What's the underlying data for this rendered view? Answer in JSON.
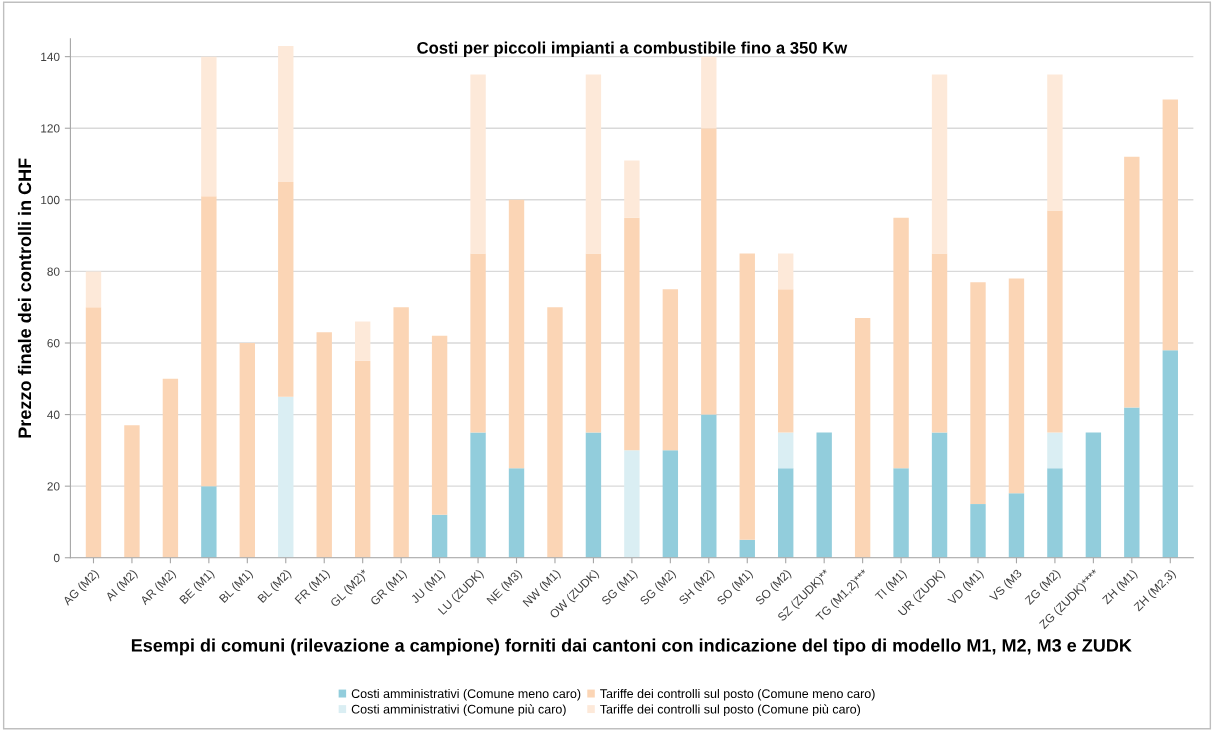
{
  "chart_data": {
    "type": "bar",
    "stacked": true,
    "title": "Costi per piccoli impianti a combustibile fino a 350 Kw",
    "xlabel": "Esempi di comuni (rilevazione a campione) forniti dai cantoni con indicazione del tipo di modello M1, M2, M3 e ZUDK",
    "ylabel": "Prezzo finale dei controlli in CHF",
    "categories": [
      "AG (M2)",
      "AI (M2)",
      "AR (M2)",
      "BE (M1)",
      "BL (M1)",
      "BL (M2)",
      "FR (M1)",
      "GL (M2)*",
      "GR (M1)",
      "JU (M1)",
      "LU (ZUDK)",
      "NE (M3)",
      "NW (M1)",
      "OW (ZUDK)",
      "SG (M1)",
      "SG (M2)",
      "SH (M2)",
      "SO (M1)",
      "SO (M2)",
      "SZ (ZUDK)**",
      "TG (M1,2)***",
      "TI (M1)",
      "UR (ZUDK)",
      "VD (M1)",
      "VS (M3",
      "ZG (M2)",
      "ZG (ZUDK)****",
      "ZH (M1)",
      "ZH (M2,3)"
    ],
    "series": [
      {
        "name": "Costi amministrativi (Comune meno caro)",
        "color": "#92cddc",
        "values": [
          0,
          0,
          0,
          20,
          0,
          0,
          0,
          0,
          0,
          12,
          35,
          25,
          0,
          35,
          0,
          30,
          40,
          5,
          25,
          35,
          0,
          25,
          35,
          15,
          18,
          25,
          35,
          42,
          58
        ]
      },
      {
        "name": "Costi amministrativi (Comune più caro)",
        "color": "#daeef3",
        "values": [
          0,
          0,
          0,
          0,
          0,
          45,
          0,
          0,
          0,
          0,
          0,
          0,
          0,
          0,
          30,
          0,
          0,
          0,
          10,
          0,
          0,
          0,
          0,
          0,
          0,
          10,
          0,
          0,
          0
        ]
      },
      {
        "name": "Tariffe dei controlli sul posto (Comune meno caro)",
        "color": "#fbd5b5",
        "values": [
          70,
          37,
          50,
          81,
          60,
          60,
          63,
          55,
          70,
          50,
          50,
          75,
          70,
          50,
          65,
          45,
          80,
          80,
          40,
          0,
          67,
          70,
          50,
          62,
          60,
          62,
          0,
          70,
          70
        ]
      },
      {
        "name": "Tariffe dei controlli sul posto (Comune più caro)",
        "color": "#fde9d9",
        "values": [
          10,
          0,
          0,
          39,
          0,
          38,
          0,
          11,
          0,
          0,
          50,
          0,
          0,
          50,
          16,
          0,
          20,
          0,
          10,
          0,
          0,
          0,
          50,
          0,
          0,
          38,
          0,
          0,
          0
        ]
      }
    ],
    "ylim": [
      0,
      145
    ],
    "yticks": [
      0,
      20,
      40,
      60,
      80,
      100,
      120,
      140
    ],
    "grid": "y",
    "legend": "bottom"
  }
}
